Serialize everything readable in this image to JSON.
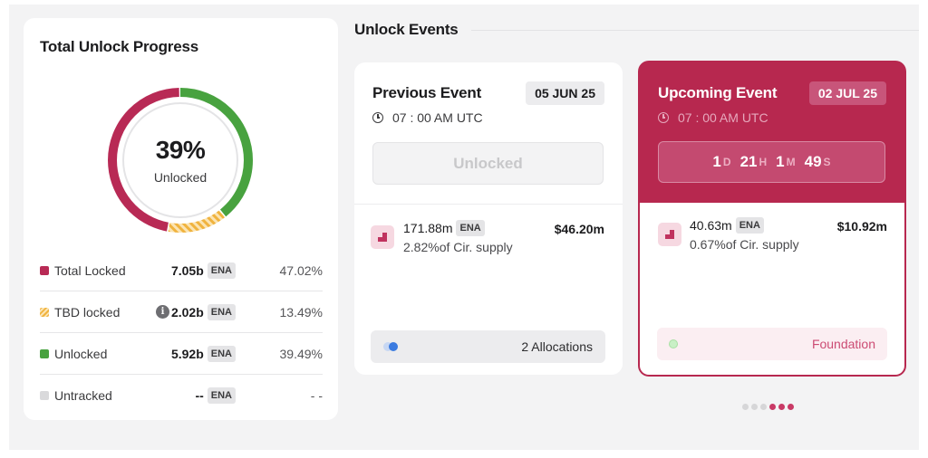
{
  "progress": {
    "title": "Total Unlock Progress",
    "percent_label": "39%",
    "center_label": "Unlocked",
    "segments": [
      {
        "name": "Unlocked",
        "fraction": 0.3949,
        "color": "#48a23f"
      },
      {
        "name": "TBD locked",
        "fraction": 0.1349,
        "color": "#f0b33e"
      },
      {
        "name": "Total Locked",
        "fraction": 0.4702,
        "color": "#b82a55"
      }
    ],
    "legend": [
      {
        "name": "Total Locked",
        "amount": "7.05b",
        "token": "ENA",
        "pct": "47.02%"
      },
      {
        "name": "TBD locked",
        "amount": "2.02b",
        "token": "ENA",
        "pct": "13.49%",
        "info_icon": "info-icon"
      },
      {
        "name": "Unlocked",
        "amount": "5.92b",
        "token": "ENA",
        "pct": "39.49%"
      },
      {
        "name": "Untracked",
        "amount": "--",
        "token": "ENA",
        "pct": "- -"
      }
    ]
  },
  "events": {
    "title": "Unlock Events",
    "previous": {
      "title": "Previous Event",
      "date": "05 JUN 25",
      "time": "07 : 00 AM UTC",
      "status_button": "Unlocked",
      "allocation": {
        "amount": "171.88m",
        "token": "ENA",
        "supply": "2.82%of Cir. supply",
        "usd": "$46.20m"
      },
      "allocations_label": "2 Allocations"
    },
    "upcoming": {
      "title": "Upcoming Event",
      "date": "02 JUL 25",
      "time": "07 : 00 AM UTC",
      "countdown": {
        "d": "1",
        "d_unit": "D",
        "h": "21",
        "h_unit": "H",
        "m": "1",
        "m_unit": "M",
        "s": "49",
        "s_unit": "S"
      },
      "allocation": {
        "amount": "40.63m",
        "token": "ENA",
        "supply": "0.67%of Cir. supply",
        "usd": "$10.92m"
      },
      "category": "Foundation"
    },
    "pager": {
      "total": 6,
      "active": [
        3,
        4,
        5
      ]
    }
  },
  "colors": {
    "accent": "#b7284f",
    "locked": "#b82a55",
    "unlocked": "#48a23f",
    "tbd": "#f0b33e",
    "untracked": "#d9d9db"
  }
}
